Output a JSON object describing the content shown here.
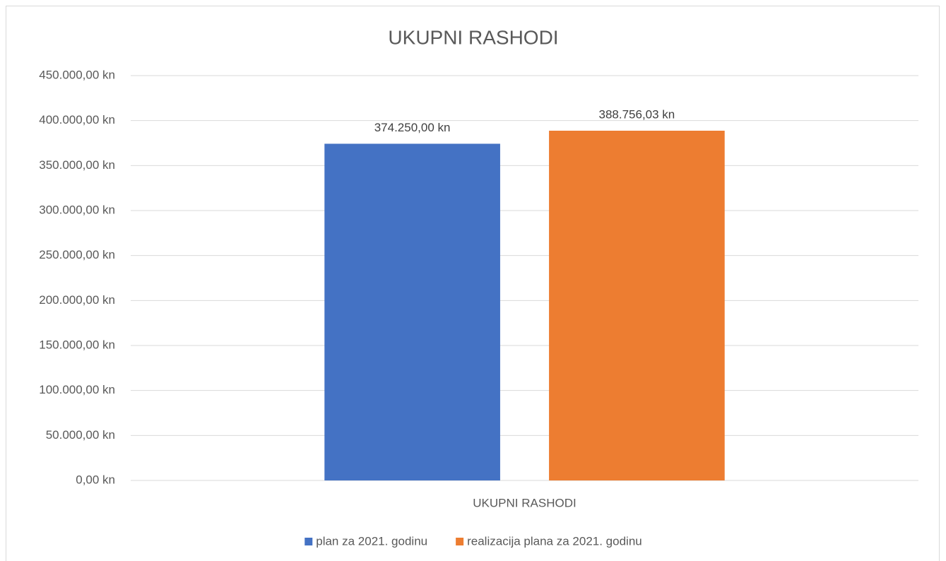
{
  "chart_data": {
    "type": "bar",
    "title": "UKUPNI RASHODI",
    "categories": [
      "UKUPNI RASHODI"
    ],
    "series": [
      {
        "name": "plan za 2021. godinu",
        "color": "#4472c4",
        "values": [
          374250.0
        ],
        "value_labels": [
          "374.250,00 kn"
        ]
      },
      {
        "name": "realizacija plana za 2021. godinu",
        "color": "#ed7d31",
        "values": [
          388756.03
        ],
        "value_labels": [
          "388.756,03 kn"
        ]
      }
    ],
    "ylim": [
      0,
      450000
    ],
    "yticks": [
      {
        "value": 0,
        "label": "0,00 kn"
      },
      {
        "value": 50000,
        "label": "50.000,00 kn"
      },
      {
        "value": 100000,
        "label": "100.000,00 kn"
      },
      {
        "value": 150000,
        "label": "150.000,00 kn"
      },
      {
        "value": 200000,
        "label": "200.000,00 kn"
      },
      {
        "value": 250000,
        "label": "250.000,00 kn"
      },
      {
        "value": 300000,
        "label": "300.000,00 kn"
      },
      {
        "value": 350000,
        "label": "350.000,00 kn"
      },
      {
        "value": 400000,
        "label": "400.000,00 kn"
      },
      {
        "value": 450000,
        "label": "450.000,00 kn"
      }
    ],
    "grid": true,
    "legend": "bottom"
  }
}
